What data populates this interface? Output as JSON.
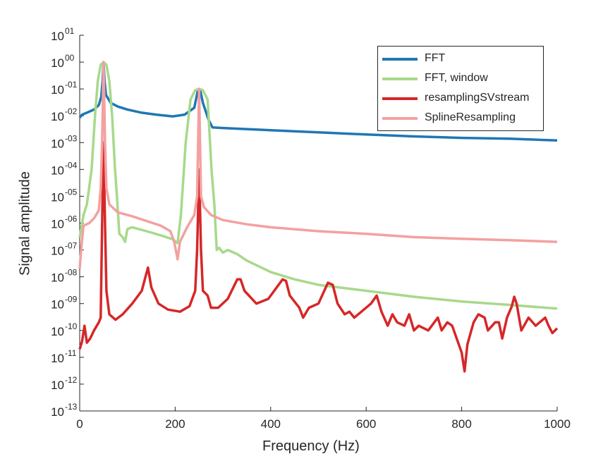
{
  "chart_data": {
    "type": "line",
    "xlabel": "Frequency (Hz)",
    "ylabel": "Signal amplitude",
    "xlim": [
      0,
      1000
    ],
    "ylim_log10": [
      -13,
      1
    ],
    "y_scale": "log",
    "grid": false,
    "legend_position": "top-right",
    "x_ticks": [
      0,
      200,
      400,
      600,
      800,
      1000
    ],
    "y_ticks": [
      {
        "base": "10",
        "exp": "01"
      },
      {
        "base": "10",
        "exp": "00"
      },
      {
        "base": "10",
        "exp": "-01"
      },
      {
        "base": "10",
        "exp": "-02"
      },
      {
        "base": "10",
        "exp": "-03"
      },
      {
        "base": "10",
        "exp": "-04"
      },
      {
        "base": "10",
        "exp": "-05"
      },
      {
        "base": "10",
        "exp": "-06"
      },
      {
        "base": "10",
        "exp": "-07"
      },
      {
        "base": "10",
        "exp": "-08"
      },
      {
        "base": "10",
        "exp": "-09"
      },
      {
        "base": "10",
        "exp": "-10"
      },
      {
        "base": "10",
        "exp": "-11"
      },
      {
        "base": "10",
        "exp": "-12"
      },
      {
        "base": "10",
        "exp": "-13"
      }
    ],
    "series": [
      {
        "name": "FFT",
        "color": "#1f77b4",
        "points": [
          [
            0,
            0.0085
          ],
          [
            5,
            0.011
          ],
          [
            15,
            0.013
          ],
          [
            30,
            0.017
          ],
          [
            40,
            0.025
          ],
          [
            45,
            0.05
          ],
          [
            48,
            0.2
          ],
          [
            50,
            1.0
          ],
          [
            52,
            0.2
          ],
          [
            55,
            0.06
          ],
          [
            65,
            0.03
          ],
          [
            80,
            0.022
          ],
          [
            100,
            0.017
          ],
          [
            130,
            0.013
          ],
          [
            160,
            0.011
          ],
          [
            195,
            0.0095
          ],
          [
            220,
            0.011
          ],
          [
            240,
            0.02
          ],
          [
            247,
            0.08
          ],
          [
            250,
            0.1
          ],
          [
            253,
            0.08
          ],
          [
            258,
            0.03
          ],
          [
            270,
            0.007
          ],
          [
            278,
            0.0037
          ],
          [
            300,
            0.0035
          ],
          [
            400,
            0.0029
          ],
          [
            500,
            0.0024
          ],
          [
            600,
            0.002
          ],
          [
            700,
            0.0017
          ],
          [
            800,
            0.0015
          ],
          [
            900,
            0.0014
          ],
          [
            1000,
            0.0012
          ]
        ]
      },
      {
        "name": "FFT, window",
        "color": "#a7d98b",
        "points": [
          [
            0,
            3e-07
          ],
          [
            8,
            2e-06
          ],
          [
            15,
            5e-06
          ],
          [
            25,
            0.0001
          ],
          [
            32,
            0.01
          ],
          [
            38,
            0.2
          ],
          [
            44,
            0.8
          ],
          [
            50,
            1.0
          ],
          [
            56,
            0.8
          ],
          [
            62,
            0.2
          ],
          [
            68,
            0.01
          ],
          [
            74,
            0.0001
          ],
          [
            78,
            1e-05
          ],
          [
            83,
            4e-07
          ],
          [
            90,
            3e-07
          ],
          [
            95,
            2e-07
          ],
          [
            100,
            6e-07
          ],
          [
            110,
            7e-07
          ],
          [
            140,
            5e-07
          ],
          [
            170,
            3.5e-07
          ],
          [
            195,
            2.5e-07
          ],
          [
            205,
            1.8e-07
          ],
          [
            212,
            2e-06
          ],
          [
            222,
            0.001
          ],
          [
            232,
            0.04
          ],
          [
            242,
            0.09
          ],
          [
            250,
            0.1
          ],
          [
            258,
            0.09
          ],
          [
            268,
            0.04
          ],
          [
            276,
            0.0001
          ],
          [
            282,
            5e-06
          ],
          [
            287,
            1e-07
          ],
          [
            292,
            1.2e-07
          ],
          [
            300,
            8e-08
          ],
          [
            310,
            1e-07
          ],
          [
            330,
            7e-08
          ],
          [
            350,
            4e-08
          ],
          [
            400,
            1.5e-08
          ],
          [
            450,
            8e-09
          ],
          [
            500,
            5e-09
          ],
          [
            600,
            3e-09
          ],
          [
            700,
            1.8e-09
          ],
          [
            800,
            1.2e-09
          ],
          [
            900,
            9e-10
          ],
          [
            1000,
            6.5e-10
          ]
        ]
      },
      {
        "name": "resamplingSVstream",
        "color": "#d62728",
        "points": [
          [
            0,
            2e-11
          ],
          [
            5,
            4e-11
          ],
          [
            10,
            1.5e-10
          ],
          [
            15,
            3.5e-11
          ],
          [
            22,
            5e-11
          ],
          [
            30,
            1e-10
          ],
          [
            40,
            2e-10
          ],
          [
            44,
            3e-10
          ],
          [
            47,
            1e-06
          ],
          [
            50,
            0.001
          ],
          [
            53,
            1e-06
          ],
          [
            56,
            3e-09
          ],
          [
            62,
            4e-10
          ],
          [
            75,
            2.5e-10
          ],
          [
            90,
            4e-10
          ],
          [
            110,
            1e-09
          ],
          [
            130,
            3e-09
          ],
          [
            143,
            2.2e-08
          ],
          [
            150,
            4e-09
          ],
          [
            165,
            1e-09
          ],
          [
            185,
            6e-10
          ],
          [
            210,
            5e-10
          ],
          [
            230,
            8e-10
          ],
          [
            242,
            3e-09
          ],
          [
            246,
            1e-07
          ],
          [
            250,
            0.0001
          ],
          [
            254,
            1e-07
          ],
          [
            258,
            3e-09
          ],
          [
            268,
            2e-09
          ],
          [
            275,
            7e-10
          ],
          [
            290,
            7e-10
          ],
          [
            310,
            1.5e-09
          ],
          [
            330,
            8e-09
          ],
          [
            337,
            8e-09
          ],
          [
            345,
            3e-09
          ],
          [
            370,
            1e-09
          ],
          [
            395,
            1.5e-09
          ],
          [
            425,
            8e-09
          ],
          [
            432,
            7e-09
          ],
          [
            440,
            2e-09
          ],
          [
            460,
            7e-10
          ],
          [
            468,
            3e-10
          ],
          [
            480,
            7e-10
          ],
          [
            500,
            1e-09
          ],
          [
            520,
            6e-09
          ],
          [
            530,
            5e-09
          ],
          [
            540,
            1e-09
          ],
          [
            555,
            4e-10
          ],
          [
            565,
            5e-10
          ],
          [
            575,
            3e-10
          ],
          [
            590,
            5e-10
          ],
          [
            610,
            1e-09
          ],
          [
            622,
            2e-09
          ],
          [
            632,
            5e-10
          ],
          [
            645,
            1.5e-10
          ],
          [
            655,
            4e-10
          ],
          [
            665,
            2e-10
          ],
          [
            680,
            1.5e-10
          ],
          [
            690,
            4e-10
          ],
          [
            700,
            1e-10
          ],
          [
            710,
            1.5e-10
          ],
          [
            730,
            1e-10
          ],
          [
            750,
            3e-10
          ],
          [
            758,
            1e-10
          ],
          [
            770,
            2e-10
          ],
          [
            780,
            1.5e-10
          ],
          [
            800,
            1.5e-11
          ],
          [
            806,
            3e-12
          ],
          [
            812,
            3e-11
          ],
          [
            825,
            2e-10
          ],
          [
            835,
            4e-10
          ],
          [
            848,
            3e-10
          ],
          [
            855,
            1e-10
          ],
          [
            870,
            2e-10
          ],
          [
            878,
            2e-10
          ],
          [
            885,
            5e-11
          ],
          [
            895,
            3e-10
          ],
          [
            905,
            8e-10
          ],
          [
            910,
            1.8e-09
          ],
          [
            915,
            1e-09
          ],
          [
            925,
            1e-10
          ],
          [
            940,
            3e-10
          ],
          [
            955,
            1.5e-10
          ],
          [
            975,
            3e-10
          ],
          [
            982,
            1.5e-10
          ],
          [
            990,
            8e-11
          ],
          [
            1000,
            1.2e-10
          ]
        ]
      },
      {
        "name": "SplineResampling",
        "color": "#f4a0a0",
        "points": [
          [
            0,
            2e-08
          ],
          [
            3,
            1e-07
          ],
          [
            8,
            8e-07
          ],
          [
            20,
            1e-06
          ],
          [
            30,
            1.5e-06
          ],
          [
            40,
            3e-06
          ],
          [
            44,
            2e-05
          ],
          [
            47,
            0.001
          ],
          [
            50,
            1.0
          ],
          [
            53,
            0.001
          ],
          [
            56,
            2e-05
          ],
          [
            62,
            5e-06
          ],
          [
            80,
            2.5e-06
          ],
          [
            110,
            1.8e-06
          ],
          [
            140,
            1.2e-06
          ],
          [
            170,
            8e-07
          ],
          [
            190,
            5e-07
          ],
          [
            198,
            2e-07
          ],
          [
            205,
            4.5e-08
          ],
          [
            210,
            2e-07
          ],
          [
            225,
            7e-07
          ],
          [
            240,
            2e-06
          ],
          [
            246,
            1e-05
          ],
          [
            250,
            0.1
          ],
          [
            254,
            1e-05
          ],
          [
            260,
            4e-06
          ],
          [
            275,
            2e-06
          ],
          [
            300,
            1.3e-06
          ],
          [
            350,
            9e-07
          ],
          [
            400,
            7e-07
          ],
          [
            500,
            5e-07
          ],
          [
            600,
            4e-07
          ],
          [
            700,
            3e-07
          ],
          [
            800,
            2.6e-07
          ],
          [
            900,
            2.3e-07
          ],
          [
            1000,
            2e-07
          ]
        ]
      }
    ]
  }
}
